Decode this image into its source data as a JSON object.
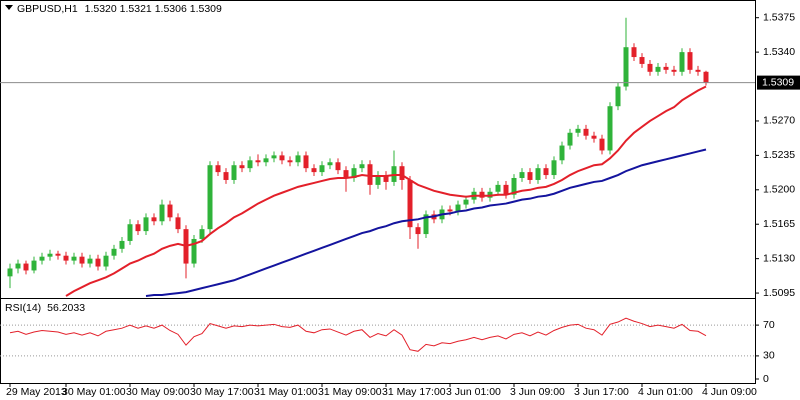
{
  "chart_data": [
    {
      "type": "candlestick",
      "symbol": "GBPUSD,H1",
      "header_ohlc": [
        "1.5320",
        "1.5321",
        "1.5306",
        "1.5309"
      ],
      "ylim": [
        1.5091,
        1.5393
      ],
      "yticks": [
        1.5375,
        {
          "value": 1.534,
          "label": "1.5340"
        },
        {
          "value": 1.527,
          "label": "1.5270"
        },
        1.5235,
        {
          "value": 1.52,
          "label": "1.5200"
        },
        1.5165,
        {
          "value": 1.513,
          "label": "1.5130"
        },
        1.5095
      ],
      "last_price": {
        "value": 1.5309,
        "label": "1.5309"
      },
      "up_color": "#2fb33a",
      "down_color": "#e3202a",
      "categories": [
        "29 May 2013",
        null,
        null,
        null,
        null,
        null,
        null,
        "30 May 01:00",
        null,
        null,
        null,
        null,
        null,
        null,
        null,
        "30 May 09:00",
        null,
        null,
        null,
        null,
        null,
        null,
        null,
        "30 May 17:00",
        null,
        null,
        null,
        null,
        null,
        null,
        null,
        "31 May 01:00",
        null,
        null,
        null,
        null,
        null,
        null,
        null,
        "31 May 09:00",
        null,
        null,
        null,
        null,
        null,
        null,
        null,
        "31 May 17:00",
        null,
        null,
        null,
        null,
        null,
        null,
        null,
        "3 Jun 01:00",
        null,
        null,
        null,
        null,
        null,
        null,
        null,
        "3 Jun 09:00",
        null,
        null,
        null,
        null,
        null,
        null,
        null,
        "3 Jun 17:00",
        null,
        null,
        null,
        null,
        null,
        null,
        null,
        "4 Jun 01:00",
        null,
        null,
        null,
        null,
        null,
        null,
        null,
        "4 Jun 09:00"
      ],
      "ohlc": [
        [
          1.5112,
          1.5125,
          1.51,
          1.512
        ],
        [
          1.512,
          1.5129,
          1.5115,
          1.5125
        ],
        [
          1.5125,
          1.5128,
          1.5114,
          1.5118
        ],
        [
          1.5118,
          1.5132,
          1.5115,
          1.5128
        ],
        [
          1.5128,
          1.5136,
          1.5124,
          1.5132
        ],
        [
          1.5132,
          1.5139,
          1.5128,
          1.5135
        ],
        [
          1.5135,
          1.5138,
          1.5129,
          1.5133
        ],
        [
          1.5133,
          1.5137,
          1.5124,
          1.5128
        ],
        [
          1.5128,
          1.5136,
          1.5124,
          1.5132
        ],
        [
          1.5132,
          1.5136,
          1.5121,
          1.5125
        ],
        [
          1.5125,
          1.5134,
          1.5121,
          1.513
        ],
        [
          1.513,
          1.5134,
          1.5118,
          1.5122
        ],
        [
          1.5122,
          1.5137,
          1.5118,
          1.5133
        ],
        [
          1.5133,
          1.5144,
          1.5129,
          1.514
        ],
        [
          1.514,
          1.5152,
          1.5136,
          1.5148
        ],
        [
          1.5148,
          1.517,
          1.5144,
          1.5165
        ],
        [
          1.5165,
          1.5169,
          1.5154,
          1.5158
        ],
        [
          1.5158,
          1.5176,
          1.5154,
          1.5172
        ],
        [
          1.5172,
          1.5176,
          1.5164,
          1.5168
        ],
        [
          1.5168,
          1.519,
          1.5164,
          1.5185
        ],
        [
          1.5185,
          1.5189,
          1.5168,
          1.5172
        ],
        [
          1.5172,
          1.5176,
          1.5156,
          1.516
        ],
        [
          1.516,
          1.5164,
          1.511,
          1.5125
        ],
        [
          1.5125,
          1.5154,
          1.5121,
          1.515
        ],
        [
          1.515,
          1.5164,
          1.5146,
          1.516
        ],
        [
          1.516,
          1.5229,
          1.5156,
          1.5225
        ],
        [
          1.5225,
          1.5229,
          1.5214,
          1.5218
        ],
        [
          1.5218,
          1.5222,
          1.5206,
          1.521
        ],
        [
          1.521,
          1.5229,
          1.5206,
          1.5225
        ],
        [
          1.5225,
          1.5229,
          1.5218,
          1.5222
        ],
        [
          1.5222,
          1.5234,
          1.5218,
          1.523
        ],
        [
          1.523,
          1.5236,
          1.5224,
          1.5228
        ],
        [
          1.5228,
          1.5236,
          1.5224,
          1.5232
        ],
        [
          1.5232,
          1.5239,
          1.5228,
          1.5235
        ],
        [
          1.5235,
          1.5239,
          1.5226,
          1.523
        ],
        [
          1.523,
          1.5234,
          1.5224,
          1.5228
        ],
        [
          1.5228,
          1.5239,
          1.5224,
          1.5235
        ],
        [
          1.5235,
          1.5239,
          1.5218,
          1.5222
        ],
        [
          1.5222,
          1.5226,
          1.5214,
          1.5218
        ],
        [
          1.5218,
          1.5229,
          1.5214,
          1.5225
        ],
        [
          1.5225,
          1.5232,
          1.5221,
          1.5228
        ],
        [
          1.5228,
          1.5232,
          1.5216,
          1.522
        ],
        [
          1.522,
          1.5224,
          1.5198,
          1.5212
        ],
        [
          1.5212,
          1.5226,
          1.5208,
          1.5222
        ],
        [
          1.5222,
          1.523,
          1.5218,
          1.5226
        ],
        [
          1.5226,
          1.523,
          1.5195,
          1.5205
        ],
        [
          1.5205,
          1.5219,
          1.5201,
          1.5215
        ],
        [
          1.5215,
          1.5219,
          1.52,
          1.5208
        ],
        [
          1.5208,
          1.524,
          1.5204,
          1.5224
        ],
        [
          1.5224,
          1.5228,
          1.52,
          1.521
        ],
        [
          1.521,
          1.5214,
          1.515,
          1.5162
        ],
        [
          1.5162,
          1.5166,
          1.514,
          1.5155
        ],
        [
          1.5155,
          1.5179,
          1.5151,
          1.5175
        ],
        [
          1.5175,
          1.5179,
          1.5166,
          1.517
        ],
        [
          1.517,
          1.5184,
          1.5166,
          1.518
        ],
        [
          1.518,
          1.5184,
          1.5174,
          1.5178
        ],
        [
          1.5178,
          1.5189,
          1.5174,
          1.5185
        ],
        [
          1.5185,
          1.5194,
          1.5181,
          1.519
        ],
        [
          1.519,
          1.5202,
          1.5186,
          1.5198
        ],
        [
          1.5198,
          1.5202,
          1.5188,
          1.5192
        ],
        [
          1.5192,
          1.5202,
          1.5188,
          1.5198
        ],
        [
          1.5198,
          1.5209,
          1.5194,
          1.5205
        ],
        [
          1.5205,
          1.5209,
          1.5191,
          1.5195
        ],
        [
          1.5195,
          1.5216,
          1.5191,
          1.5212
        ],
        [
          1.5212,
          1.5222,
          1.5208,
          1.5218
        ],
        [
          1.5218,
          1.5222,
          1.5206,
          1.521
        ],
        [
          1.521,
          1.5226,
          1.5206,
          1.5222
        ],
        [
          1.5222,
          1.5226,
          1.5211,
          1.5215
        ],
        [
          1.5215,
          1.5234,
          1.5211,
          1.523
        ],
        [
          1.523,
          1.5249,
          1.5226,
          1.5245
        ],
        [
          1.5245,
          1.5262,
          1.5241,
          1.5258
        ],
        [
          1.5258,
          1.5266,
          1.5254,
          1.5262
        ],
        [
          1.5262,
          1.5266,
          1.5251,
          1.5255
        ],
        [
          1.5255,
          1.5259,
          1.5248,
          1.5252
        ],
        [
          1.5252,
          1.5256,
          1.5236,
          1.524
        ],
        [
          1.524,
          1.5289,
          1.5236,
          1.5285
        ],
        [
          1.5285,
          1.5309,
          1.5281,
          1.5305
        ],
        [
          1.5305,
          1.5375,
          1.5301,
          1.5345
        ],
        [
          1.5345,
          1.5349,
          1.5331,
          1.5335
        ],
        [
          1.5335,
          1.5339,
          1.5324,
          1.5328
        ],
        [
          1.5328,
          1.5332,
          1.5316,
          1.532
        ],
        [
          1.532,
          1.5329,
          1.5316,
          1.5325
        ],
        [
          1.5325,
          1.5329,
          1.5318,
          1.5322
        ],
        [
          1.5322,
          1.5326,
          1.5316,
          1.532
        ],
        [
          1.532,
          1.5344,
          1.5316,
          1.534
        ],
        [
          1.534,
          1.5344,
          1.5318,
          1.5322
        ],
        [
          1.5322,
          1.5326,
          1.5316,
          1.532
        ],
        [
          1.532,
          1.5321,
          1.5306,
          1.5309
        ]
      ],
      "series": [
        {
          "color": "#e3202a",
          "values": [
            null,
            null,
            null,
            null,
            null,
            null,
            null,
            1.5092,
            1.5097,
            1.5101,
            1.5105,
            1.5108,
            1.5111,
            1.5115,
            1.512,
            1.5125,
            1.5128,
            1.5132,
            1.5135,
            1.514,
            1.5143,
            1.5145,
            1.5143,
            1.5145,
            1.5148,
            1.5155,
            1.5161,
            1.5166,
            1.5172,
            1.5176,
            1.5181,
            1.5186,
            1.519,
            1.5194,
            1.5197,
            1.52,
            1.5203,
            1.5205,
            1.5207,
            1.5209,
            1.5211,
            1.5212,
            1.5212,
            1.5213,
            1.5215,
            1.5214,
            1.5214,
            1.5214,
            1.5215,
            1.5215,
            1.521,
            1.5205,
            1.5202,
            1.5199,
            1.5197,
            1.5195,
            1.5194,
            1.5193,
            1.5194,
            1.5194,
            1.5194,
            1.5195,
            1.5195,
            1.5197,
            1.5199,
            1.52,
            1.5202,
            1.5203,
            1.5206,
            1.521,
            1.5215,
            1.5219,
            1.5222,
            1.5225,
            1.5226,
            1.5232,
            1.524,
            1.525,
            1.5258,
            1.5264,
            1.527,
            1.5275,
            1.528,
            1.5284,
            1.5291,
            1.5296,
            1.5301,
            1.5305
          ]
        },
        {
          "color": "#14149e",
          "values": [
            null,
            null,
            null,
            null,
            null,
            null,
            null,
            null,
            null,
            null,
            null,
            null,
            null,
            null,
            null,
            null,
            null,
            1.5092,
            1.5093,
            1.5093,
            1.5094,
            1.5095,
            1.5096,
            1.5098,
            1.51,
            1.5102,
            1.5104,
            1.5106,
            1.5108,
            1.5111,
            1.5114,
            1.5117,
            1.512,
            1.5123,
            1.5126,
            1.5129,
            1.5132,
            1.5135,
            1.5138,
            1.5141,
            1.5144,
            1.5147,
            1.515,
            1.5153,
            1.5156,
            1.5158,
            1.5161,
            1.5163,
            1.5166,
            1.5168,
            1.5169,
            1.517,
            1.5172,
            1.5173,
            1.5175,
            1.5176,
            1.5178,
            1.5179,
            1.5181,
            1.5182,
            1.5184,
            1.5185,
            1.5186,
            1.5188,
            1.519,
            1.5191,
            1.5193,
            1.5194,
            1.5196,
            1.5199,
            1.5202,
            1.5204,
            1.5206,
            1.5208,
            1.5209,
            1.5212,
            1.5215,
            1.5219,
            1.5222,
            1.5225,
            1.5227,
            1.5229,
            1.5231,
            1.5233,
            1.5235,
            1.5237,
            1.5239,
            1.5241
          ]
        }
      ]
    },
    {
      "type": "line",
      "title": "RSI(14)",
      "ylim": [
        0,
        100
      ],
      "yticks": [
        70,
        30,
        0
      ],
      "series": [
        {
          "color": "#e3202a",
          "values": [
            60,
            62,
            58,
            61,
            63,
            62,
            61,
            58,
            60,
            57,
            60,
            56,
            62,
            64,
            66,
            70,
            66,
            69,
            66,
            70,
            63,
            58,
            44,
            55,
            59,
            72,
            69,
            66,
            69,
            68,
            70,
            69,
            70,
            71,
            68,
            67,
            70,
            62,
            60,
            64,
            65,
            61,
            57,
            62,
            64,
            54,
            59,
            56,
            64,
            57,
            38,
            36,
            45,
            43,
            47,
            46,
            49,
            51,
            54,
            51,
            54,
            56,
            52,
            58,
            60,
            56,
            61,
            57,
            63,
            67,
            70,
            71,
            66,
            64,
            57,
            71,
            74,
            79,
            75,
            72,
            68,
            70,
            68,
            66,
            71,
            63,
            62,
            56.2033
          ]
        }
      ]
    }
  ]
}
